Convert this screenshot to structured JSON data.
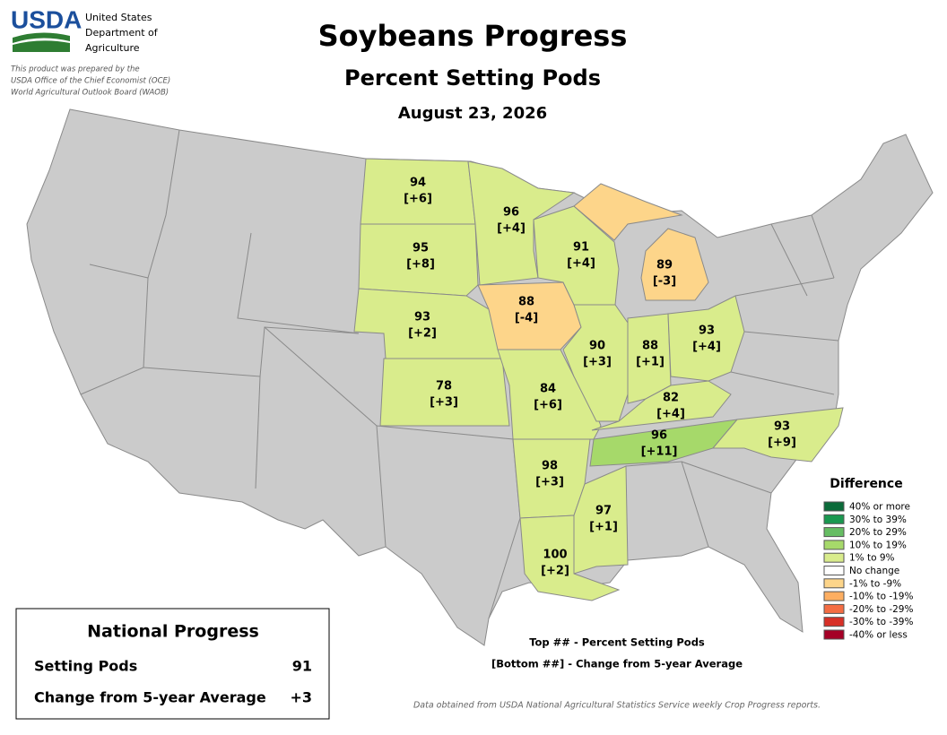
{
  "header": {
    "agency": "USDA",
    "agency_lines": [
      "United States",
      "Department of",
      "Agriculture"
    ],
    "note_lines": [
      "This product was prepared by the",
      "USDA Office of the Chief Economist (OCE)",
      "World Agricultural Outlook Board (WAOB)"
    ],
    "title": "Soybeans Progress",
    "subtitle": "Percent Setting Pods",
    "date": "August 23, 2026"
  },
  "states": [
    {
      "name": "North Dakota",
      "value": 94,
      "change": "[+6]",
      "color": "#d9ec8c"
    },
    {
      "name": "South Dakota",
      "value": 95,
      "change": "[+8]",
      "color": "#d9ec8c"
    },
    {
      "name": "Nebraska",
      "value": 93,
      "change": "[+2]",
      "color": "#d9ec8c"
    },
    {
      "name": "Kansas",
      "value": 78,
      "change": "[+3]",
      "color": "#d9ec8c"
    },
    {
      "name": "Minnesota",
      "value": 96,
      "change": "[+4]",
      "color": "#d9ec8c"
    },
    {
      "name": "Iowa",
      "value": 88,
      "change": "[-4]",
      "color": "#fdd58a"
    },
    {
      "name": "Missouri",
      "value": 84,
      "change": "[+6]",
      "color": "#d9ec8c"
    },
    {
      "name": "Wisconsin",
      "value": 91,
      "change": "[+4]",
      "color": "#d9ec8c"
    },
    {
      "name": "Illinois",
      "value": 90,
      "change": "[+3]",
      "color": "#d9ec8c"
    },
    {
      "name": "Indiana",
      "value": 88,
      "change": "[+1]",
      "color": "#d9ec8c"
    },
    {
      "name": "Ohio",
      "value": 93,
      "change": "[+4]",
      "color": "#d9ec8c"
    },
    {
      "name": "Michigan",
      "value": 89,
      "change": "[-3]",
      "color": "#fdd58a"
    },
    {
      "name": "Kentucky",
      "value": 82,
      "change": "[+4]",
      "color": "#d9ec8c"
    },
    {
      "name": "Tennessee",
      "value": 96,
      "change": "[+11]",
      "color": "#a6d96a"
    },
    {
      "name": "North Carolina",
      "value": 93,
      "change": "[+9]",
      "color": "#d9ec8c"
    },
    {
      "name": "Arkansas",
      "value": 98,
      "change": "[+3]",
      "color": "#d9ec8c"
    },
    {
      "name": "Mississippi",
      "value": 97,
      "change": "[+1]",
      "color": "#d9ec8c"
    },
    {
      "name": "Louisiana",
      "value": 100,
      "change": "[+2]",
      "color": "#d9ec8c"
    }
  ],
  "legend": {
    "title": "Difference",
    "items": [
      {
        "label": "40% or more",
        "color": "#0b6b3a"
      },
      {
        "label": "30% to 39%",
        "color": "#1a9850"
      },
      {
        "label": "20% to 29%",
        "color": "#66bd63"
      },
      {
        "label": "10% to 19%",
        "color": "#a6d96a"
      },
      {
        "label": "1% to 9%",
        "color": "#d9ec8c"
      },
      {
        "label": "No change",
        "color": "#ffffff"
      },
      {
        "label": "-1% to -9%",
        "color": "#fdd58a"
      },
      {
        "label": "-10% to -19%",
        "color": "#fdae61"
      },
      {
        "label": "-20% to -29%",
        "color": "#f46d43"
      },
      {
        "label": "-30% to -39%",
        "color": "#d73027"
      },
      {
        "label": "-40% or less",
        "color": "#a50026"
      }
    ]
  },
  "key": [
    "Top ## - Percent Setting Pods",
    "[Bottom ##] - Change from 5-year Average"
  ],
  "national": {
    "title": "National Progress",
    "rows": [
      [
        "Setting Pods",
        91
      ],
      [
        "Change from 5-year Average",
        "+3"
      ]
    ]
  },
  "source": "Data obtained from USDA National Agricultural Statistics Service weekly Crop Progress reports."
}
